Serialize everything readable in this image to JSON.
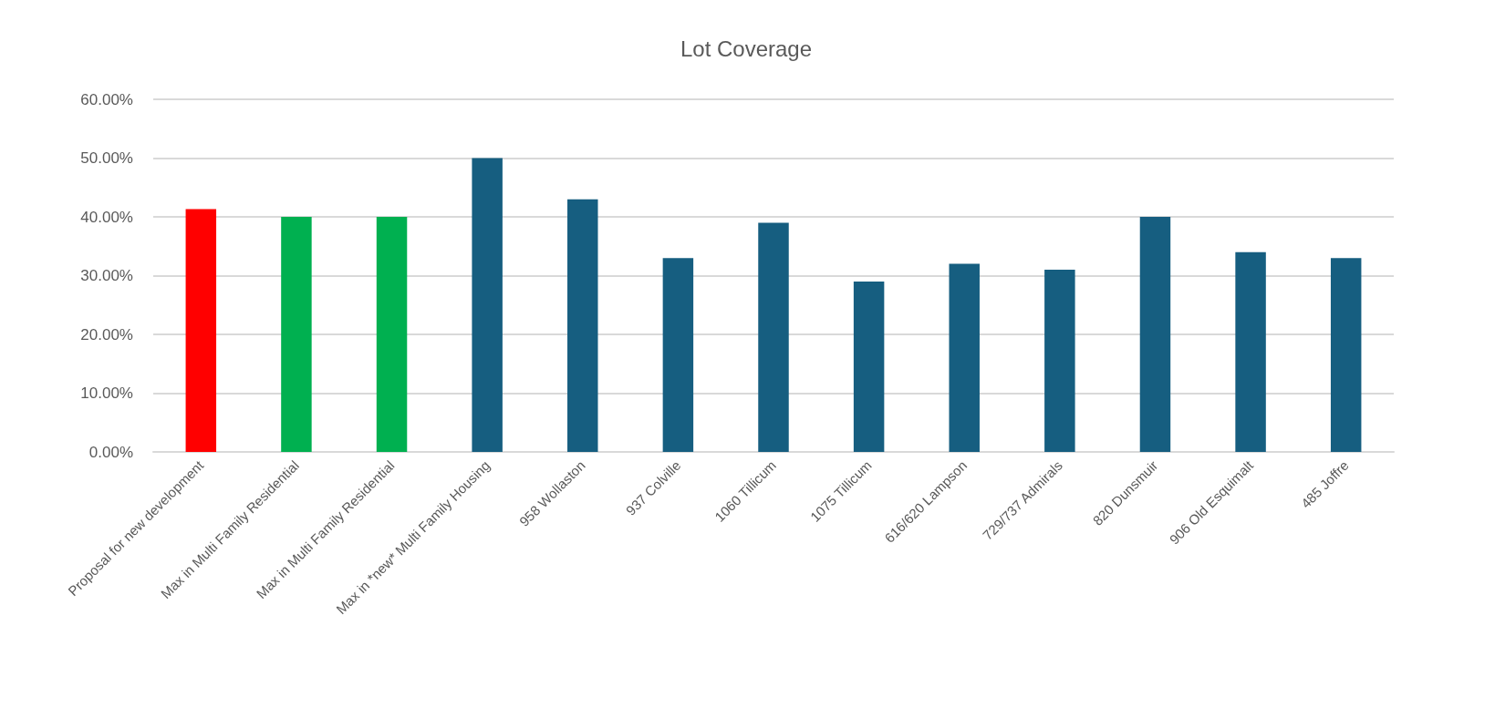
{
  "chart_data": {
    "type": "bar",
    "title": "Lot Coverage",
    "categories": [
      "Proposal for new development",
      "Max in Multi Family Residential",
      "Max in Multi Family Residential",
      "Max in *new* Multi Family Housing",
      "958 Wollaston",
      "937 Colville",
      "1060 Tillicum",
      "1075 Tillicum",
      "616/620 Lampson",
      "729/737 Admirals",
      "820 Dunsmuir",
      "906 Old Esquimalt",
      "485 Joffre"
    ],
    "values": [
      41.3,
      40,
      40,
      50,
      43,
      33,
      39,
      29,
      32,
      31,
      40,
      34,
      33
    ],
    "colors": [
      "#ff0000",
      "#00b050",
      "#00b050",
      "#165e80",
      "#165e80",
      "#165e80",
      "#165e80",
      "#165e80",
      "#165e80",
      "#165e80",
      "#165e80",
      "#165e80",
      "#165e80"
    ],
    "ylim": [
      0,
      60
    ],
    "yticks": [
      {
        "value": 0,
        "label": "0.00%"
      },
      {
        "value": 10,
        "label": "10.00%"
      },
      {
        "value": 20,
        "label": "20.00%"
      },
      {
        "value": 30,
        "label": "30.00%"
      },
      {
        "value": 40,
        "label": "40.00%"
      },
      {
        "value": 50,
        "label": "50.00%"
      },
      {
        "value": 60,
        "label": "60.00%"
      }
    ],
    "grid": "y"
  }
}
